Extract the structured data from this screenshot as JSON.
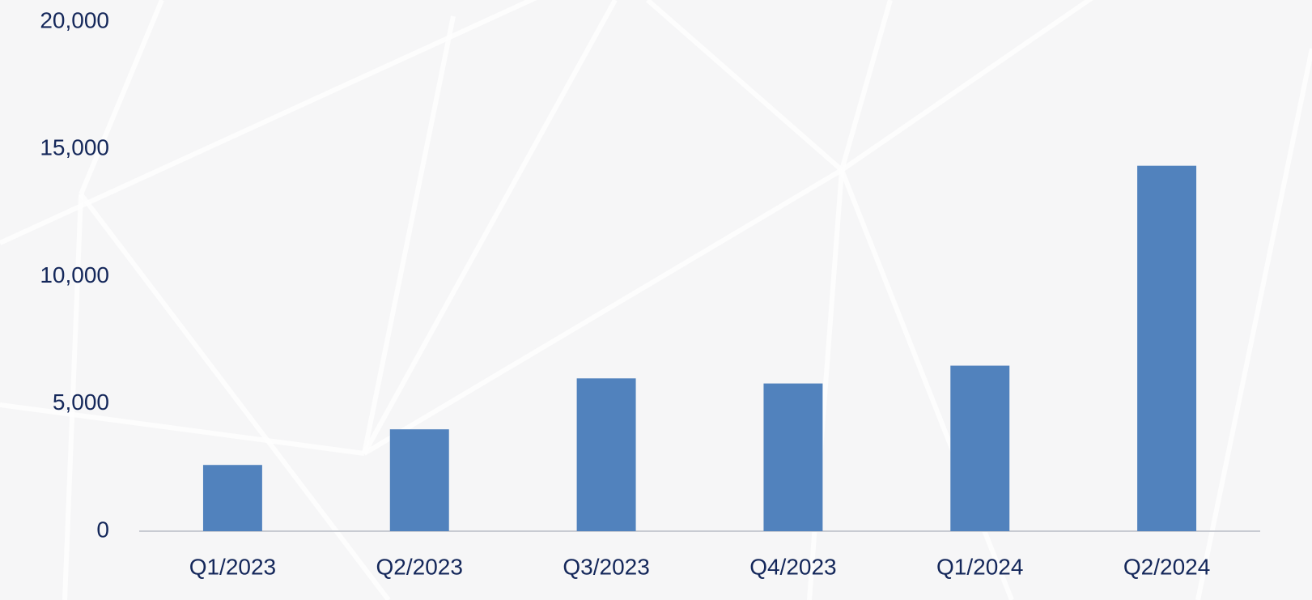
{
  "chart_data": {
    "type": "bar",
    "categories": [
      "Q1/2023",
      "Q2/2023",
      "Q3/2023",
      "Q4/2023",
      "Q1/2024",
      "Q2/2024"
    ],
    "values": [
      2600,
      4000,
      6000,
      5800,
      6500,
      14350
    ],
    "color": "#5182bd",
    "ylim": [
      0,
      20000
    ],
    "yticks": [
      0,
      {
        "value": 5000,
        "label": "5,000"
      },
      {
        "value": 10000,
        "label": "10,000"
      },
      {
        "value": 15000,
        "label": "15,000"
      },
      {
        "value": 20000,
        "label": "20,000"
      }
    ],
    "grid": false
  }
}
